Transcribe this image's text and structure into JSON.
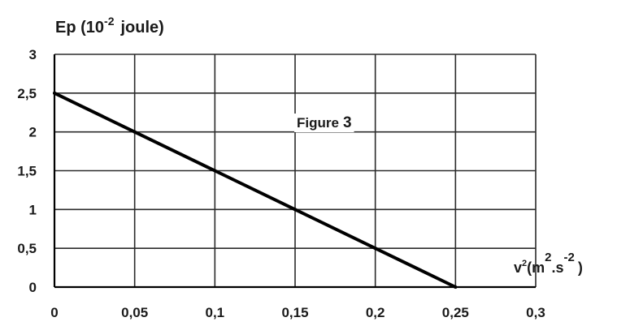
{
  "chart_data": {
    "type": "line",
    "title": "",
    "annotation": {
      "text": "Figure",
      "number": "3"
    },
    "ylabel": {
      "text": "Ep (10",
      "exponent": "-2",
      "unit": "joule)"
    },
    "xlabel": {
      "symbol": "v",
      "symbol_sup": "2",
      "open": "(m",
      "m_exp": "2",
      "mid": ".s",
      "s_exp": "-2",
      "close": ")"
    },
    "xlim": [
      0,
      0.3
    ],
    "ylim": [
      0,
      3
    ],
    "x_ticks": [
      0,
      0.05,
      0.1,
      0.15,
      0.2,
      0.25,
      0.3
    ],
    "x_tick_labels": [
      "0",
      "0,05",
      "0,1",
      "0,15",
      "0,2",
      "0,25",
      "0,3"
    ],
    "y_ticks": [
      0,
      0.5,
      1,
      1.5,
      2,
      2.5,
      3
    ],
    "y_tick_labels": [
      "0",
      "0,5",
      "1",
      "1,5",
      "2",
      "2,5",
      "3"
    ],
    "grid": true,
    "series": [
      {
        "x": [
          0,
          0.05,
          0.1,
          0.15,
          0.2,
          0.25
        ],
        "y": [
          2.5,
          2,
          1.5,
          1,
          0.5,
          0
        ]
      }
    ],
    "colors": {
      "line": "#000000",
      "grid": "#2b2b2b"
    }
  }
}
